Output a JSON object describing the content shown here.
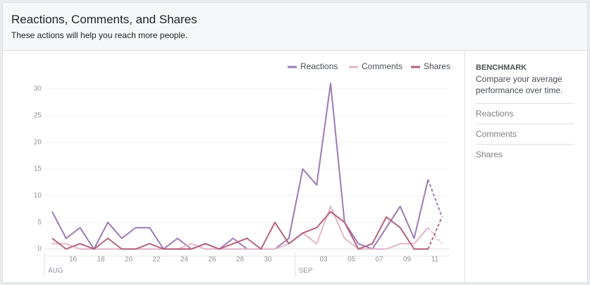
{
  "header": {
    "title": "Reactions, Comments, and Shares",
    "subtitle": "These actions will help you reach more people."
  },
  "sidebar": {
    "heading": "BENCHMARK",
    "description": "Compare your average performance over time.",
    "items": [
      "Reactions",
      "Comments",
      "Shares"
    ]
  },
  "chart_data": {
    "type": "line",
    "categories": [
      null,
      null,
      "16",
      null,
      "18",
      null,
      "20",
      null,
      "22",
      null,
      "24",
      null,
      "26",
      null,
      "28",
      null,
      "30",
      null,
      null,
      null,
      "03",
      null,
      "05",
      null,
      "07",
      null,
      "09",
      null,
      "11"
    ],
    "month_labels": [
      {
        "label": "AUG",
        "index": 0
      },
      {
        "label": "SEP",
        "index": 18
      }
    ],
    "series": [
      {
        "name": "Reactions",
        "color": "#9b7bb5",
        "values": [
          7,
          2,
          4,
          0,
          5,
          2,
          4,
          4,
          0,
          2,
          0,
          1,
          0,
          2,
          0,
          0,
          0,
          2,
          15,
          12,
          31,
          5,
          1,
          0,
          4,
          8,
          2,
          13,
          6
        ]
      },
      {
        "name": "Comments",
        "color": "#e3b6ca",
        "values": [
          1,
          1,
          0,
          0,
          0,
          0,
          0,
          0,
          0,
          0,
          1,
          0,
          0,
          0,
          0,
          0,
          0,
          1,
          3,
          1,
          8,
          2,
          0,
          0,
          0,
          1,
          1,
          4,
          1
        ]
      },
      {
        "name": "Shares",
        "color": "#b5617f",
        "values": [
          2,
          0,
          1,
          0,
          2,
          0,
          0,
          1,
          0,
          0,
          0,
          1,
          0,
          1,
          2,
          0,
          5,
          1,
          3,
          4,
          7,
          5,
          0,
          1,
          6,
          4,
          0,
          0,
          6
        ]
      }
    ],
    "ylim": [
      0,
      30
    ],
    "yticks": [
      0,
      5,
      10,
      15,
      20,
      25,
      30
    ],
    "grid": true,
    "dashed_last_segment": true,
    "legend": "top-right"
  }
}
